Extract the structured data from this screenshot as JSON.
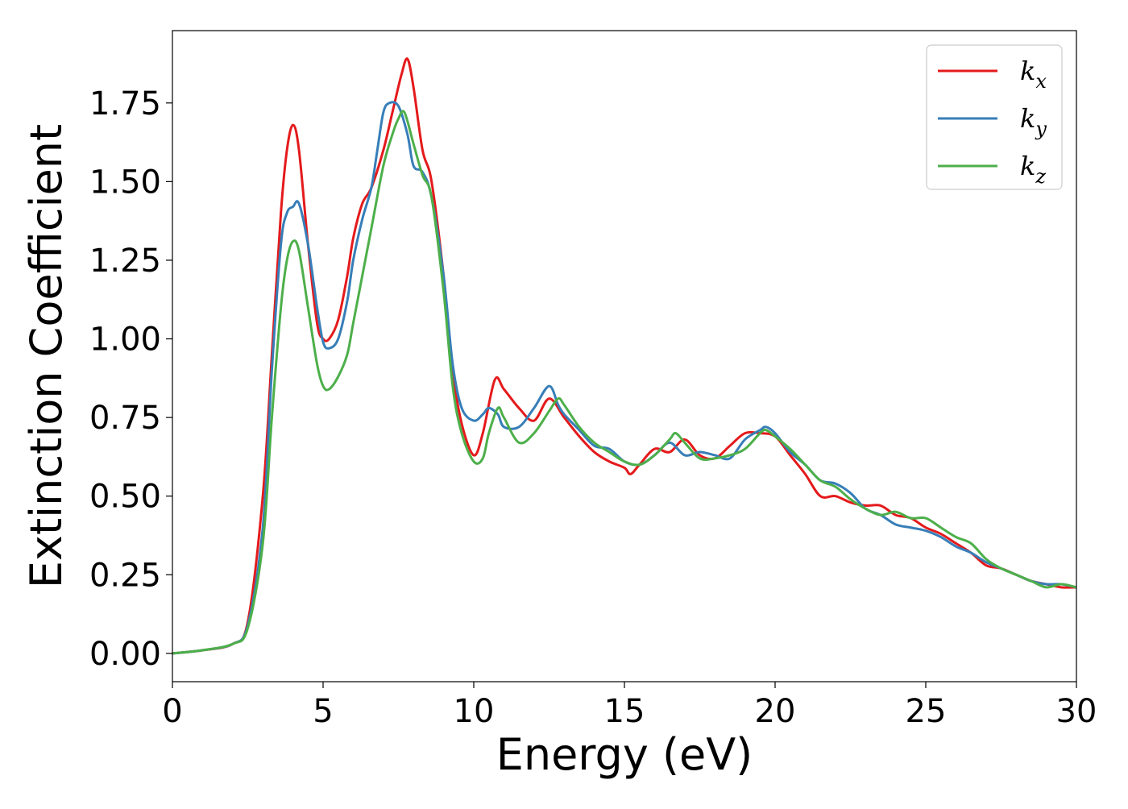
{
  "chart_data": {
    "type": "line",
    "xlabel": "Energy (eV)",
    "ylabel": "Extinction Coefficient",
    "xlim": [
      0,
      30
    ],
    "ylim": [
      -0.09,
      1.98
    ],
    "xticks": [
      "0",
      "5",
      "10",
      "15",
      "20",
      "25",
      "30"
    ],
    "yticks": [
      "0.00",
      "0.25",
      "0.50",
      "0.75",
      "1.00",
      "1.25",
      "1.50",
      "1.75"
    ],
    "legend_position": "top-right",
    "grid": false,
    "series": [
      {
        "name": "k",
        "subscript": "x",
        "color": "#e41a1c",
        "x": [
          0,
          1,
          2,
          2.5,
          3,
          3.3,
          3.6,
          3.8,
          4.0,
          4.2,
          4.5,
          4.8,
          5.0,
          5.2,
          5.5,
          5.8,
          6.0,
          6.3,
          6.6,
          7.0,
          7.3,
          7.6,
          7.8,
          8.0,
          8.3,
          8.6,
          9.0,
          9.3,
          9.6,
          10.0,
          10.3,
          10.7,
          11.0,
          11.5,
          12.0,
          12.5,
          13.0,
          13.5,
          14.0,
          14.5,
          15.0,
          15.2,
          15.5,
          16.0,
          16.5,
          17.0,
          17.5,
          18.0,
          18.5,
          19.0,
          19.5,
          20.0,
          20.5,
          21.0,
          21.5,
          22.0,
          22.5,
          23.0,
          23.5,
          24.0,
          24.5,
          25.0,
          25.5,
          26.0,
          26.5,
          27.0,
          27.5,
          28.0,
          28.5,
          29.0,
          29.5,
          30.0
        ],
        "values": [
          0.0,
          0.01,
          0.03,
          0.1,
          0.5,
          0.95,
          1.4,
          1.6,
          1.68,
          1.6,
          1.3,
          1.05,
          1.0,
          1.0,
          1.06,
          1.2,
          1.32,
          1.43,
          1.48,
          1.6,
          1.72,
          1.84,
          1.89,
          1.8,
          1.6,
          1.5,
          1.2,
          0.9,
          0.73,
          0.63,
          0.7,
          0.87,
          0.84,
          0.78,
          0.74,
          0.81,
          0.75,
          0.69,
          0.64,
          0.61,
          0.59,
          0.57,
          0.6,
          0.65,
          0.64,
          0.68,
          0.63,
          0.62,
          0.66,
          0.7,
          0.7,
          0.69,
          0.63,
          0.57,
          0.5,
          0.5,
          0.48,
          0.47,
          0.47,
          0.44,
          0.43,
          0.4,
          0.38,
          0.35,
          0.32,
          0.28,
          0.27,
          0.25,
          0.23,
          0.22,
          0.21,
          0.21
        ]
      },
      {
        "name": "k",
        "subscript": "y",
        "color": "#377eb8",
        "x": [
          0,
          1,
          2,
          2.5,
          3,
          3.3,
          3.6,
          3.8,
          4.0,
          4.2,
          4.5,
          4.8,
          5.0,
          5.2,
          5.5,
          5.8,
          6.0,
          6.3,
          6.6,
          6.8,
          7.0,
          7.2,
          7.5,
          7.8,
          8.0,
          8.3,
          8.6,
          9.0,
          9.3,
          9.6,
          10.0,
          10.3,
          10.5,
          10.8,
          11.0,
          11.5,
          12.0,
          12.5,
          12.8,
          13.0,
          13.5,
          14.0,
          14.5,
          15.0,
          15.5,
          16.0,
          16.5,
          17.0,
          17.5,
          18.0,
          18.5,
          19.0,
          19.5,
          19.7,
          20.0,
          20.5,
          21.0,
          21.5,
          22.0,
          22.5,
          23.0,
          23.5,
          24.0,
          24.5,
          25.0,
          25.5,
          26.0,
          26.5,
          27.0,
          27.5,
          28.0,
          28.5,
          29.0,
          29.5,
          30.0
        ],
        "values": [
          0.0,
          0.01,
          0.03,
          0.09,
          0.4,
          0.9,
          1.3,
          1.4,
          1.42,
          1.43,
          1.3,
          1.1,
          0.99,
          0.97,
          1.0,
          1.12,
          1.25,
          1.38,
          1.48,
          1.6,
          1.72,
          1.75,
          1.74,
          1.65,
          1.55,
          1.53,
          1.45,
          1.2,
          0.92,
          0.78,
          0.74,
          0.76,
          0.78,
          0.76,
          0.72,
          0.72,
          0.78,
          0.85,
          0.79,
          0.76,
          0.71,
          0.66,
          0.65,
          0.61,
          0.6,
          0.63,
          0.67,
          0.63,
          0.64,
          0.63,
          0.62,
          0.68,
          0.71,
          0.72,
          0.7,
          0.64,
          0.6,
          0.55,
          0.54,
          0.51,
          0.46,
          0.44,
          0.41,
          0.4,
          0.39,
          0.37,
          0.34,
          0.32,
          0.29,
          0.27,
          0.25,
          0.23,
          0.22,
          0.22,
          0.21
        ]
      },
      {
        "name": "k",
        "subscript": "z",
        "color": "#4daf4a",
        "x": [
          0,
          1,
          2,
          2.5,
          3,
          3.3,
          3.6,
          3.8,
          4.0,
          4.2,
          4.5,
          4.8,
          5.0,
          5.2,
          5.5,
          5.8,
          6.0,
          6.3,
          6.6,
          7.0,
          7.3,
          7.5,
          7.7,
          8.0,
          8.3,
          8.6,
          9.0,
          9.3,
          9.6,
          10.0,
          10.3,
          10.5,
          10.8,
          11.0,
          11.5,
          12.0,
          12.5,
          12.8,
          13.0,
          13.5,
          14.0,
          14.5,
          15.0,
          15.5,
          16.0,
          16.5,
          16.7,
          17.0,
          17.5,
          18.0,
          18.5,
          19.0,
          19.5,
          19.7,
          20.0,
          20.5,
          21.0,
          21.5,
          22.0,
          22.5,
          23.0,
          23.5,
          24.0,
          24.5,
          25.0,
          25.5,
          26.0,
          26.5,
          27.0,
          27.5,
          28.0,
          28.5,
          29.0,
          29.5,
          30.0
        ],
        "values": [
          0.0,
          0.01,
          0.03,
          0.08,
          0.35,
          0.75,
          1.1,
          1.25,
          1.31,
          1.28,
          1.1,
          0.92,
          0.85,
          0.84,
          0.88,
          0.95,
          1.05,
          1.2,
          1.35,
          1.55,
          1.65,
          1.7,
          1.72,
          1.62,
          1.52,
          1.45,
          1.15,
          0.85,
          0.7,
          0.61,
          0.62,
          0.7,
          0.78,
          0.75,
          0.67,
          0.7,
          0.77,
          0.81,
          0.79,
          0.72,
          0.67,
          0.64,
          0.61,
          0.6,
          0.63,
          0.68,
          0.7,
          0.67,
          0.62,
          0.62,
          0.63,
          0.65,
          0.7,
          0.71,
          0.69,
          0.65,
          0.6,
          0.55,
          0.53,
          0.49,
          0.46,
          0.44,
          0.45,
          0.43,
          0.43,
          0.4,
          0.37,
          0.35,
          0.3,
          0.27,
          0.25,
          0.23,
          0.21,
          0.22,
          0.21
        ]
      }
    ]
  }
}
